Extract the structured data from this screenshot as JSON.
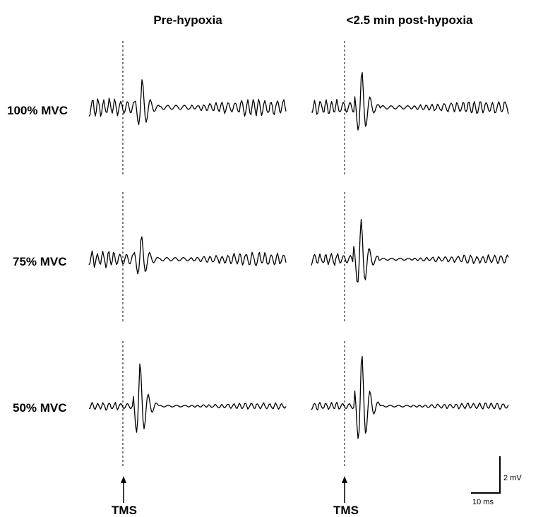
{
  "chart_data": {
    "type": "line",
    "columns": [
      "Pre-hypoxia",
      "<2.5 min post-hypoxia"
    ],
    "rows": [
      "100% MVC",
      "75% MVC",
      "50% MVC"
    ],
    "marker_label": "TMS",
    "scale_bar": {
      "vertical_label": "2 mV",
      "horizontal_label": "10 ms"
    },
    "traces": [
      {
        "column": "Pre-hypoxia",
        "row": "100% MVC"
      },
      {
        "column": "<2.5 min post-hypoxia",
        "row": "100% MVC"
      },
      {
        "column": "Pre-hypoxia",
        "row": "75% MVC"
      },
      {
        "column": "<2.5 min post-hypoxia",
        "row": "75% MVC"
      },
      {
        "column": "Pre-hypoxia",
        "row": "50% MVC"
      },
      {
        "column": "<2.5 min post-hypoxia",
        "row": "50% MVC"
      }
    ]
  }
}
